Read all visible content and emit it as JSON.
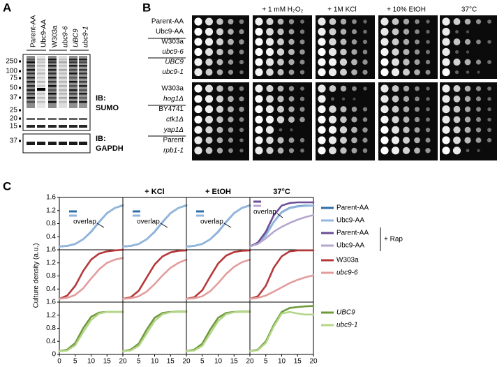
{
  "panel_a": {
    "label": "A",
    "lanes": [
      {
        "text": "Parent-AA",
        "italic": false
      },
      {
        "text": "Ubc9-AA",
        "italic": false
      },
      {
        "text": "W303a",
        "italic": false
      },
      {
        "text": "ubc9-6",
        "italic": true
      },
      {
        "text": "UBC9",
        "italic": true
      },
      {
        "text": "ubc9-1",
        "italic": true
      }
    ],
    "markers": [
      250,
      100,
      75,
      50,
      37,
      25,
      20,
      15
    ],
    "gapdh_marker": 37,
    "sumo_label": [
      "IB:",
      "SUMO"
    ],
    "gapdh_label": [
      "IB:",
      "GAPDH"
    ]
  },
  "panel_b": {
    "label": "B",
    "conditions": [
      "+ 1 mM H₂O₂",
      "+ 1M KCl",
      "+ 10% EtOH",
      "37°C"
    ],
    "top_rows": [
      {
        "text": "Parent-AA",
        "italic": false
      },
      {
        "text": "Ubc9-AA",
        "italic": false
      },
      {
        "text": "W303a",
        "italic": false
      },
      {
        "text": "ubc9-6",
        "italic": true
      },
      {
        "text": "UBC9",
        "italic": true
      },
      {
        "text": "ubc9-1",
        "italic": true
      }
    ],
    "bottom_rows": [
      {
        "text": "W303a",
        "italic": false
      },
      {
        "text": "hog1Δ",
        "italic": true
      },
      {
        "text": "BY4741",
        "italic": false
      },
      {
        "text": "ctk1Δ",
        "italic": true
      },
      {
        "text": "yap1Δ",
        "italic": true
      },
      {
        "text": "Parent",
        "italic": false
      },
      {
        "text": "rpb1-1",
        "italic": true
      }
    ]
  },
  "panel_c": {
    "label": "C",
    "y_label": "Culture density (a.u.)",
    "headers": [
      "+ KCl",
      "+ EtOH",
      "37°C"
    ],
    "annotation": "overlap",
    "rap_label": "+ Rap",
    "x": [
      0,
      2.5,
      5,
      7.5,
      10,
      12.5,
      15,
      17.5,
      20
    ],
    "xlim": [
      0,
      20
    ],
    "xticks": [
      0,
      5,
      10,
      15,
      20
    ],
    "ylim": [
      0,
      1.6
    ],
    "yticks": [
      0,
      0.4,
      0.8,
      1.2,
      1.6
    ],
    "rows": [
      {
        "series": [
          {
            "name": "Parent-AA",
            "color": "#2f6ea6",
            "italic": false,
            "rap": false,
            "values": [
              [
                0.1,
                0.12,
                0.18,
                0.32,
                0.55,
                0.85,
                1.12,
                1.28,
                1.36
              ],
              [
                0.1,
                0.12,
                0.18,
                0.32,
                0.55,
                0.85,
                1.12,
                1.28,
                1.36
              ],
              [
                0.1,
                0.12,
                0.18,
                0.32,
                0.55,
                0.85,
                1.12,
                1.28,
                1.36
              ],
              [
                0.1,
                0.2,
                0.45,
                0.85,
                1.15,
                1.28,
                1.33,
                1.35,
                1.35
              ]
            ]
          },
          {
            "name": "Ubc9-AA",
            "color": "#93b6de",
            "italic": false,
            "rap": false,
            "values": [
              [
                0.1,
                0.12,
                0.18,
                0.32,
                0.56,
                0.86,
                1.12,
                1.28,
                1.35
              ],
              [
                0.1,
                0.12,
                0.18,
                0.32,
                0.56,
                0.86,
                1.12,
                1.28,
                1.35
              ],
              [
                0.1,
                0.12,
                0.18,
                0.32,
                0.56,
                0.86,
                1.12,
                1.28,
                1.35
              ],
              [
                0.1,
                0.2,
                0.44,
                0.84,
                1.14,
                1.27,
                1.32,
                1.34,
                1.35
              ]
            ]
          },
          {
            "name": "Parent-AA",
            "color": "#6a4e96",
            "italic": false,
            "rap": true,
            "values": [
              null,
              null,
              null,
              [
                0.1,
                0.22,
                0.55,
                1.05,
                1.35,
                1.43,
                1.45,
                1.45,
                1.45
              ]
            ]
          },
          {
            "name": "Ubc9-AA",
            "color": "#b6a6cf",
            "italic": false,
            "rap": true,
            "values": [
              null,
              null,
              null,
              [
                0.1,
                0.18,
                0.35,
                0.55,
                0.7,
                0.82,
                0.92,
                1.0,
                1.06
              ]
            ]
          }
        ]
      },
      {
        "series": [
          {
            "name": "W303a",
            "color": "#b5383a",
            "italic": false,
            "rap": false,
            "values": [
              [
                0.1,
                0.2,
                0.5,
                0.95,
                1.3,
                1.48,
                1.55,
                1.58,
                1.6
              ],
              [
                0.1,
                0.15,
                0.35,
                0.75,
                1.15,
                1.4,
                1.52,
                1.57,
                1.58
              ],
              [
                0.1,
                0.15,
                0.36,
                0.78,
                1.18,
                1.42,
                1.53,
                1.57,
                1.58
              ],
              [
                0.1,
                0.18,
                0.5,
                1.05,
                1.4,
                1.55,
                1.58,
                1.58,
                1.58
              ]
            ]
          },
          {
            "name": "ubc9-6",
            "color": "#e39c9c",
            "italic": true,
            "rap": false,
            "values": [
              [
                0.1,
                0.13,
                0.22,
                0.42,
                0.72,
                1.0,
                1.2,
                1.3,
                1.35
              ],
              [
                0.1,
                0.12,
                0.18,
                0.32,
                0.55,
                0.82,
                1.05,
                1.2,
                1.3
              ],
              [
                0.1,
                0.12,
                0.18,
                0.33,
                0.58,
                0.86,
                1.08,
                1.22,
                1.3
              ],
              [
                0.1,
                0.13,
                0.2,
                0.32,
                0.45,
                0.58,
                0.68,
                0.76,
                0.82
              ]
            ]
          }
        ]
      },
      {
        "series": [
          {
            "name": "UBC9",
            "color": "#6f9a3a",
            "italic": true,
            "rap": false,
            "values": [
              [
                0.1,
                0.15,
                0.35,
                0.8,
                1.15,
                1.28,
                1.3,
                1.3,
                1.3
              ],
              [
                0.1,
                0.15,
                0.33,
                0.76,
                1.12,
                1.27,
                1.3,
                1.31,
                1.31
              ],
              [
                0.1,
                0.15,
                0.33,
                0.76,
                1.12,
                1.27,
                1.3,
                1.31,
                1.31
              ],
              [
                0.1,
                0.15,
                0.4,
                0.9,
                1.3,
                1.42,
                1.45,
                1.47,
                1.48
              ]
            ]
          },
          {
            "name": "ubc9-1",
            "color": "#b5d68a",
            "italic": true,
            "rap": false,
            "values": [
              [
                0.1,
                0.12,
                0.28,
                0.68,
                1.05,
                1.25,
                1.3,
                1.3,
                1.3
              ],
              [
                0.1,
                0.12,
                0.26,
                0.64,
                1.02,
                1.23,
                1.29,
                1.3,
                1.3
              ],
              [
                0.1,
                0.12,
                0.26,
                0.64,
                1.02,
                1.23,
                1.29,
                1.3,
                1.3
              ],
              [
                0.1,
                0.13,
                0.35,
                0.85,
                1.25,
                1.3,
                1.25,
                1.22,
                1.22
              ]
            ]
          }
        ]
      }
    ]
  }
}
